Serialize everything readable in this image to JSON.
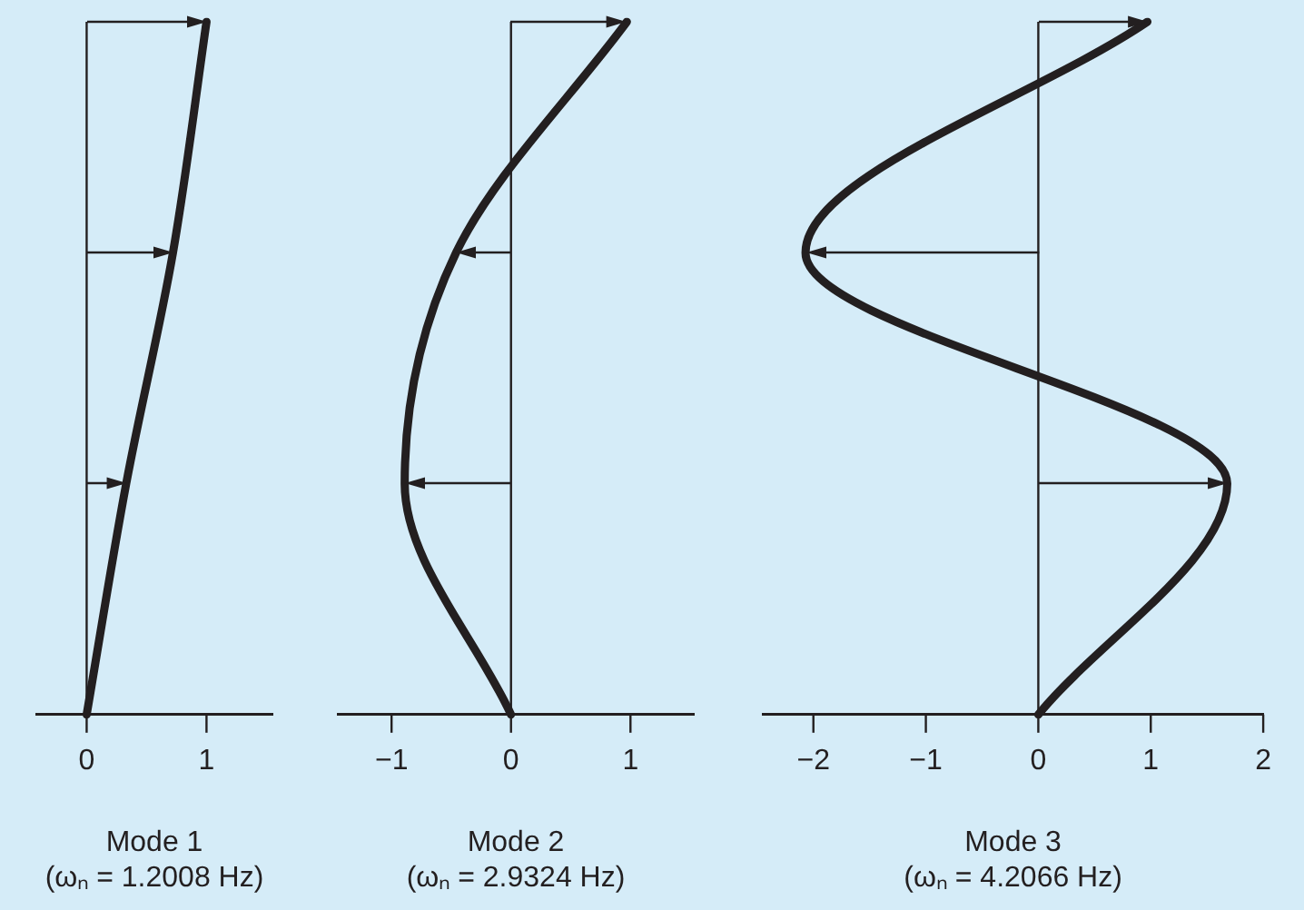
{
  "chart_data": [
    {
      "type": "line",
      "orientation": "horizontal",
      "categories": [
        null,
        null,
        null,
        null
      ],
      "series": [
        {
          "color": "#231f20",
          "values": [
            1,
            0.72,
            0.33,
            0
          ]
        }
      ],
      "xlim": [
        -0.42,
        1.55
      ],
      "xticks": [
        0,
        1
      ],
      "ref_lines": [
        {
          "axis": "x",
          "value": 0
        }
      ],
      "grid": false,
      "marker": "none",
      "line_style": "solid",
      "xlabel": "Mode 1\n(ωₙ = 1.2008 Hz)"
    },
    {
      "type": "line",
      "orientation": "horizontal",
      "categories": [
        null,
        null,
        null,
        null
      ],
      "series": [
        {
          "color": "#231f20",
          "values": [
            0.97,
            -0.46,
            -0.89,
            0
          ]
        }
      ],
      "xlim": [
        -1.45,
        1.53
      ],
      "xticks": [
        -1,
        0,
        1
      ],
      "ref_lines": [
        {
          "axis": "x",
          "value": 0
        }
      ],
      "grid": false,
      "marker": "none",
      "line_style": "solid",
      "xlabel": "Mode 2\n(ωₙ = 2.9324 Hz)"
    },
    {
      "type": "line",
      "orientation": "horizontal",
      "categories": [
        null,
        null,
        null,
        null
      ],
      "series": [
        {
          "color": "#231f20",
          "values": [
            0.97,
            -2.07,
            1.68,
            0
          ]
        }
      ],
      "xlim": [
        -2.45,
        2
      ],
      "xticks": [
        -2,
        -1,
        0,
        1,
        2
      ],
      "ref_lines": [
        {
          "axis": "x",
          "value": 0
        }
      ],
      "grid": false,
      "marker": "none",
      "line_style": "solid",
      "xlabel": "Mode 3\n(ωₙ = 4.2066 Hz)"
    }
  ]
}
